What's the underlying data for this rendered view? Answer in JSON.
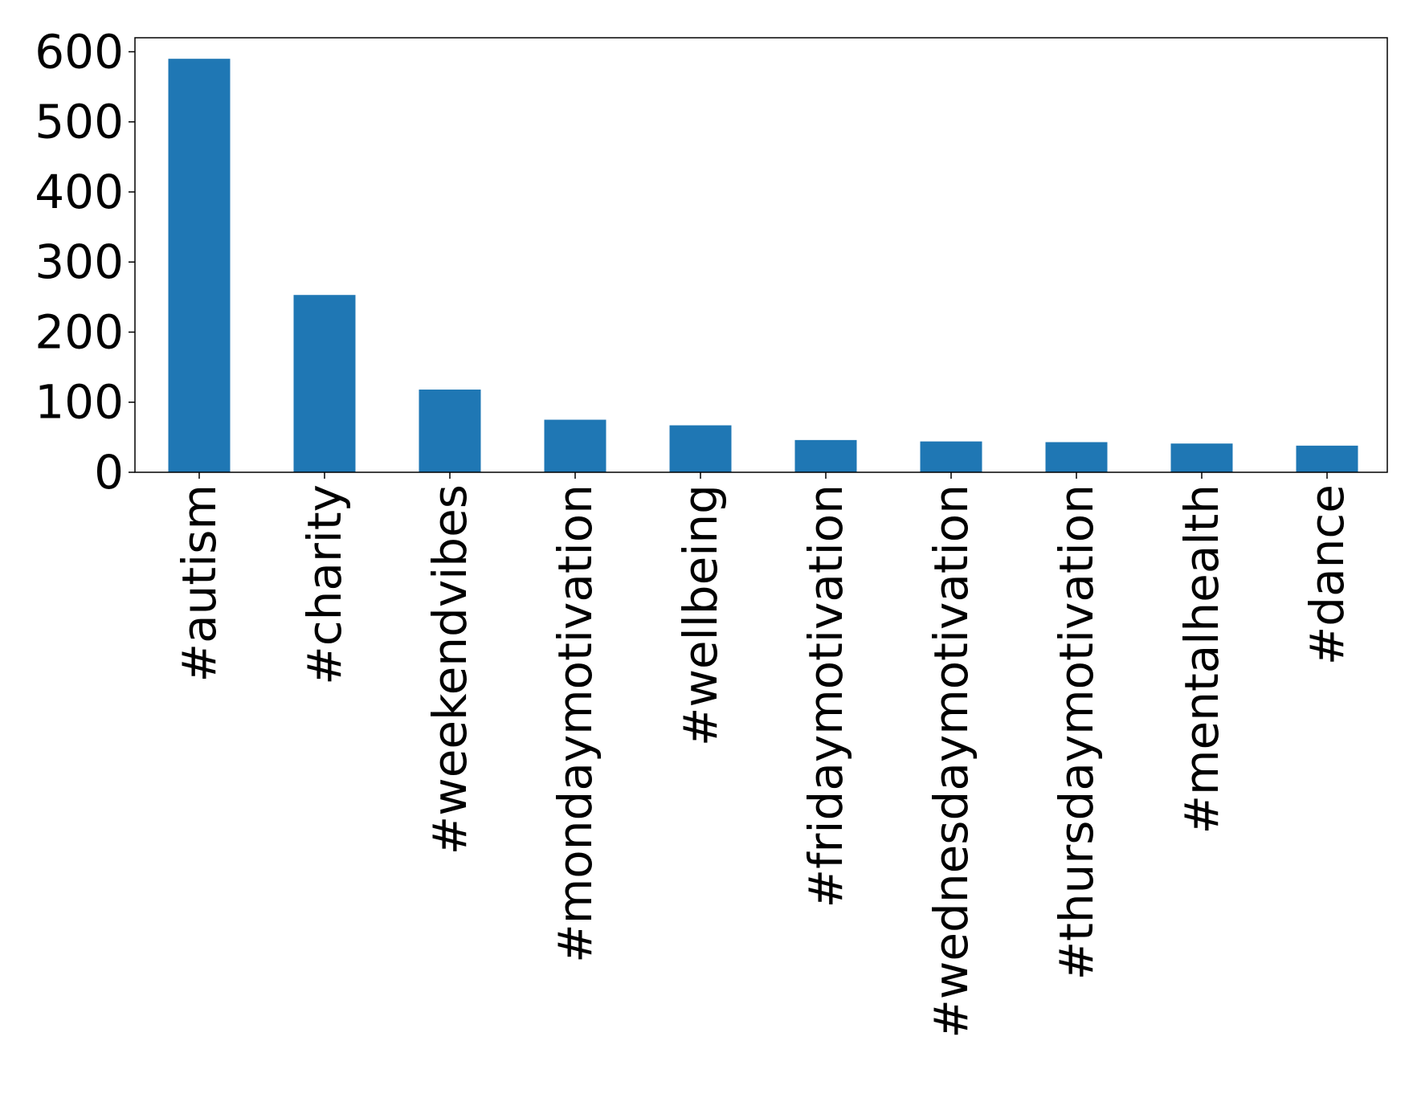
{
  "chart_data": {
    "type": "bar",
    "title": "",
    "xlabel": "",
    "ylabel": "",
    "categories": [
      "#autism",
      "#charity",
      "#weekendvibes",
      "#mondaymotivation",
      "#wellbeing",
      "#fridaymotivation",
      "#wednesdaymotivation",
      "#thursdaymotivation",
      "#mentalhealth",
      "#dance"
    ],
    "values": [
      590,
      253,
      118,
      75,
      67,
      46,
      44,
      43,
      41,
      38
    ],
    "ylim": [
      0,
      620
    ],
    "yticks": [
      "0",
      "100",
      "200",
      "300",
      "400",
      "500",
      "600"
    ],
    "bar_color": "#1f77b4",
    "grid": false,
    "legend": "none"
  }
}
